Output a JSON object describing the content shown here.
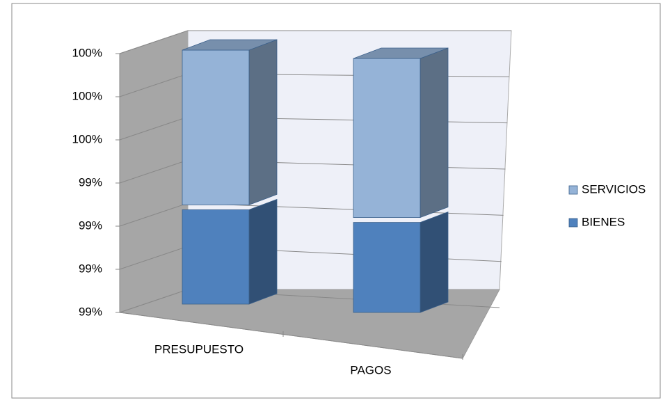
{
  "chart_data": {
    "type": "bar3d_stacked",
    "categories": [
      "PRESUPUESTO",
      "PAGOS"
    ],
    "series": [
      {
        "name": "BIENES",
        "color": "#4f81bd",
        "values": [
          99.33,
          99.32
        ]
      },
      {
        "name": "SERVICIOS",
        "color": "#95b3d7",
        "values": [
          0.37,
          0.38
        ]
      }
    ],
    "ylim": [
      99.1,
      99.7
    ],
    "yticks": [
      {
        "value": 99.1,
        "label": "99%"
      },
      {
        "value": 99.2,
        "label": "99%"
      },
      {
        "value": 99.3,
        "label": "99%"
      },
      {
        "value": 99.4,
        "label": "99%"
      },
      {
        "value": 99.5,
        "label": "100%"
      },
      {
        "value": 99.6,
        "label": "100%"
      },
      {
        "value": 99.7,
        "label": "100%"
      }
    ],
    "grid": true,
    "legend": "right"
  }
}
